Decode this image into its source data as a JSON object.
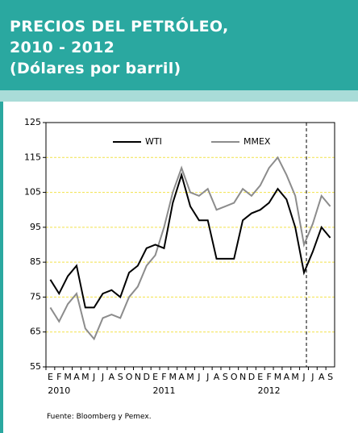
{
  "header": {
    "lines": [
      "PRECIOS DEL PETRÓLEO,",
      "2010 - 2012",
      "(Dólares por barril)"
    ]
  },
  "chart_data": {
    "type": "line",
    "x": [
      "2010-01",
      "2010-02",
      "2010-03",
      "2010-04",
      "2010-05",
      "2010-06",
      "2010-07",
      "2010-08",
      "2010-09",
      "2010-10",
      "2010-11",
      "2010-12",
      "2011-01",
      "2011-02",
      "2011-03",
      "2011-04",
      "2011-05",
      "2011-06",
      "2011-07",
      "2011-08",
      "2011-09",
      "2011-10",
      "2011-11",
      "2011-12",
      "2012-01",
      "2012-02",
      "2012-03",
      "2012-04",
      "2012-05",
      "2012-06",
      "2012-07",
      "2012-08",
      "2012-09"
    ],
    "xticks": [
      {
        "value": "2010-01",
        "label": "E"
      },
      {
        "value": "2010-02",
        "label": "F"
      },
      {
        "value": "2010-03",
        "label": "M"
      },
      {
        "value": "2010-04",
        "label": "A"
      },
      {
        "value": "2010-05",
        "label": "M"
      },
      {
        "value": "2010-06",
        "label": "J"
      },
      {
        "value": "2010-07",
        "label": "J"
      },
      {
        "value": "2010-08",
        "label": "A"
      },
      {
        "value": "2010-09",
        "label": "S"
      },
      {
        "value": "2010-10",
        "label": "O"
      },
      {
        "value": "2010-11",
        "label": "N"
      },
      {
        "value": "2010-12",
        "label": "D"
      },
      {
        "value": "2011-01",
        "label": "E"
      },
      {
        "value": "2011-02",
        "label": "F"
      },
      {
        "value": "2011-03",
        "label": "M"
      },
      {
        "value": "2011-04",
        "label": "A"
      },
      {
        "value": "2011-05",
        "label": "M"
      },
      {
        "value": "2011-06",
        "label": "J"
      },
      {
        "value": "2011-07",
        "label": "J"
      },
      {
        "value": "2011-08",
        "label": "A"
      },
      {
        "value": "2011-09",
        "label": "S"
      },
      {
        "value": "2011-10",
        "label": "O"
      },
      {
        "value": "2011-11",
        "label": "N"
      },
      {
        "value": "2011-12",
        "label": "D"
      },
      {
        "value": "2012-01",
        "label": "E"
      },
      {
        "value": "2012-02",
        "label": "F"
      },
      {
        "value": "2012-03",
        "label": "M"
      },
      {
        "value": "2012-04",
        "label": "A"
      },
      {
        "value": "2012-05",
        "label": "M"
      },
      {
        "value": "2012-06",
        "label": "J"
      },
      {
        "value": "2012-07",
        "label": "J"
      },
      {
        "value": "2012-08",
        "label": "A"
      },
      {
        "value": "2012-09",
        "label": "S"
      }
    ],
    "year_ticks": [
      {
        "value": "2010-02",
        "label": "2010"
      },
      {
        "value": "2011-02",
        "label": "2011"
      },
      {
        "value": "2012-02",
        "label": "2012"
      }
    ],
    "series": [
      {
        "name": "WTI",
        "color": "#000000",
        "values": [
          80,
          76,
          81,
          84,
          72,
          72,
          76,
          77,
          75,
          82,
          84,
          89,
          90,
          89,
          102,
          110,
          101,
          97,
          97,
          86,
          86,
          86,
          97,
          99,
          100,
          102,
          106,
          103,
          95,
          82,
          88,
          95,
          92
        ]
      },
      {
        "name": "MMEX",
        "color": "#8c8c8c",
        "values": [
          72,
          68,
          73,
          76,
          66,
          63,
          69,
          70,
          69,
          75,
          78,
          84,
          87,
          95,
          105,
          112,
          105,
          104,
          106,
          100,
          101,
          102,
          106,
          104,
          107,
          112,
          115,
          110,
          104,
          90,
          96,
          104,
          101
        ]
      }
    ],
    "ylim": [
      55,
      125
    ],
    "yticks": [
      55,
      65,
      75,
      85,
      95,
      105,
      115,
      125
    ],
    "grid": true
  },
  "footer": {
    "source": "Fuente: Bloomberg y Pemex."
  }
}
